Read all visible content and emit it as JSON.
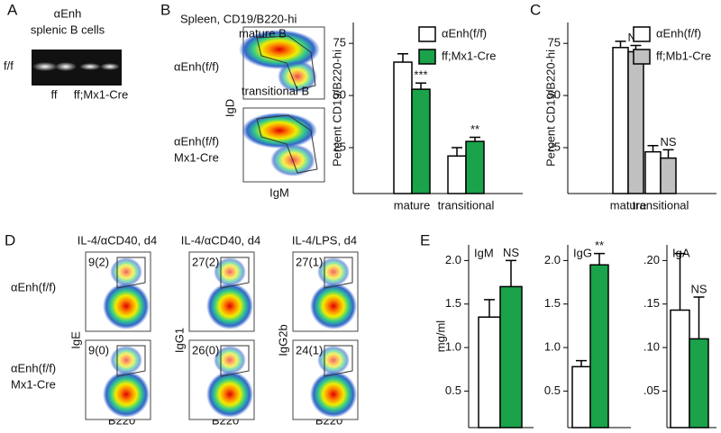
{
  "panels": {
    "A": {
      "letter": "A",
      "title": "αEnh",
      "subtitle": "splenic B cells",
      "row_label": "f/f",
      "lane_labels": [
        "ff",
        "ff;Mx1-Cre"
      ]
    },
    "B": {
      "letter": "B",
      "flow_title": "Spleen, CD19/B220-hi",
      "gate_labels": [
        "mature B",
        "transitional B"
      ],
      "row_labels": [
        [
          "αEnh(f/f)"
        ],
        [
          "αEnh(f/f)",
          "Mx1-Cre"
        ]
      ],
      "x_label": "IgM",
      "y_label": "IgD"
    },
    "C": {
      "letter": "C"
    },
    "D": {
      "letter": "D",
      "row_labels": [
        [
          "αEnh(f/f)"
        ],
        [
          "αEnh(f/f)",
          "Mx1-Cre"
        ]
      ],
      "columns": [
        {
          "title": "IL-4/αCD40, d4",
          "y_label": "IgE",
          "x_label": "B220",
          "percents": [
            "9(2)",
            "9(0)"
          ]
        },
        {
          "title": "IL-4/αCD40, d4",
          "y_label": "IgG1",
          "x_label": "B220",
          "percents": [
            "27(2)",
            "26(0)"
          ]
        },
        {
          "title": "IL-4/LPS, d4",
          "y_label": "IgG2b",
          "x_label": "B220",
          "percents": [
            "27(1)",
            "24(1)"
          ]
        }
      ]
    },
    "E": {
      "letter": "E"
    }
  },
  "chart_data": [
    {
      "type": "bar",
      "y_label": "Percent CD19/B220-hi",
      "categories": [
        "mature",
        "transitional"
      ],
      "series": [
        {
          "name": "αEnh(f/f)",
          "color": "#ffffff",
          "values": [
            66,
            21
          ],
          "errors": [
            4,
            4
          ]
        },
        {
          "name": "ff;Mx1-Cre",
          "color": "#1aa34a",
          "values": [
            53,
            28
          ],
          "errors": [
            3,
            2
          ],
          "annotations": [
            "***",
            "**"
          ]
        }
      ],
      "ylim": [
        3,
        85
      ],
      "yticks": [
        25,
        50,
        75
      ]
    },
    {
      "type": "bar",
      "y_label": "Percent CD19/B220-hi",
      "categories": [
        "mature",
        "transitional"
      ],
      "series": [
        {
          "name": "αEnh(f/f)",
          "color": "#ffffff",
          "values": [
            73,
            23
          ],
          "errors": [
            3,
            3
          ]
        },
        {
          "name": "ff;Mb1-Cre",
          "color": "#c0c0c0",
          "values": [
            71,
            20
          ],
          "errors": [
            3,
            4
          ],
          "annotations": [
            "NS",
            "NS"
          ]
        }
      ],
      "ylim": [
        3,
        85
      ],
      "yticks": [
        25,
        50,
        75
      ]
    },
    {
      "type": "bar",
      "title": "IgM",
      "y_label": "mg/ml",
      "values": [
        1.35,
        1.7
      ],
      "errors": [
        0.2,
        0.3
      ],
      "colors": [
        "#ffffff",
        "#1aa34a"
      ],
      "annotation": "NS",
      "ylim": [
        0.08,
        2.18
      ],
      "yticks": [
        0.5,
        {
          "value": 1,
          "label": "1.0"
        },
        1.5,
        {
          "value": 2,
          "label": "2.0"
        }
      ]
    },
    {
      "type": "bar",
      "title": "IgG",
      "values": [
        0.78,
        1.95
      ],
      "errors": [
        0.07,
        0.13
      ],
      "colors": [
        "#ffffff",
        "#1aa34a"
      ],
      "annotation": "**",
      "ylim": [
        0.08,
        2.18
      ],
      "yticks": [
        0.5,
        {
          "value": 1,
          "label": "1.0"
        },
        1.5,
        {
          "value": 2,
          "label": "2.0"
        }
      ]
    },
    {
      "type": "bar",
      "title": "IgA",
      "values": [
        0.143,
        0.11
      ],
      "errors": [
        0.065,
        0.048
      ],
      "colors": [
        "#ffffff",
        "#1aa34a"
      ],
      "annotation": "NS",
      "ylim": [
        0.008,
        0.218
      ],
      "yticks": [
        {
          "value": 0.05,
          "label": ".05"
        },
        {
          "value": 0.1,
          "label": ".10"
        },
        {
          "value": 0.15,
          "label": ".15"
        },
        {
          "value": 0.2,
          "label": ".20"
        }
      ]
    }
  ]
}
